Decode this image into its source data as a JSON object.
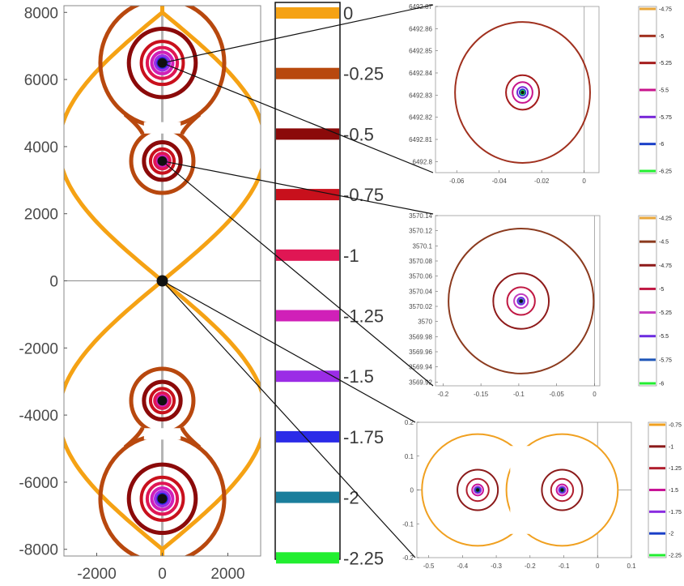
{
  "chart_data": [
    {
      "type": "contour",
      "panel": "main",
      "x": {
        "ticks": [
          -2000,
          0,
          2000
        ],
        "lim": [
          -3000,
          3000
        ]
      },
      "y": {
        "ticks": [
          -8000,
          -6000,
          -4000,
          -2000,
          0,
          2000,
          4000,
          6000,
          8000
        ],
        "lim": [
          -8200,
          8200
        ]
      },
      "grid": false,
      "critical_points": [
        {
          "x": 0,
          "y": 6492.83
        },
        {
          "x": 0,
          "y": 3570.03
        },
        {
          "x": 0,
          "y": 0
        },
        {
          "x": 0,
          "y": -3570.03
        },
        {
          "x": 0,
          "y": -6492.83
        }
      ],
      "levels": [
        0,
        -0.25,
        -0.5,
        -0.75,
        -1,
        -1.25,
        -1.5
      ]
    },
    {
      "type": "legend",
      "panel": "level-scale",
      "levels": [
        0,
        -0.25,
        -0.5,
        -0.75,
        -1,
        -1.25,
        -1.5,
        -1.75,
        -2,
        -2.25
      ],
      "labels": [
        "0",
        "-0.25",
        "-0.5",
        "-0.75",
        "-1",
        "-1.25",
        "-1.5",
        "-1.75",
        "-2",
        "-2.25"
      ],
      "colors": [
        "#F5A214",
        "#B8480E",
        "#8B0A0A",
        "#C8101C",
        "#E01654",
        "#D020B8",
        "#9B2CE6",
        "#2B2BE8",
        "#1A7E9C",
        "#22EE30"
      ]
    },
    {
      "type": "contour",
      "panel": "zoom-top",
      "x": {
        "ticks": [
          -0.06,
          -0.04,
          -0.02,
          0
        ],
        "lim": [
          -0.07,
          0.007
        ]
      },
      "y": {
        "ticks": [
          6492.8,
          6492.81,
          6492.82,
          6492.83,
          6492.84,
          6492.85,
          6492.86,
          6492.87
        ],
        "labels": [
          "6492.8",
          "6492.81",
          "6492.82",
          "6492.83",
          "6492.84",
          "6492.85",
          "6492.86",
          "6492.87"
        ],
        "lim": [
          6492.795,
          6492.87
        ]
      },
      "center": {
        "x": -0.029,
        "y": 6492.8312
      },
      "rings": [
        {
          "level": -5,
          "radius": 0.0318
        },
        {
          "level": -5.25,
          "radius": 0.0078
        },
        {
          "level": -5.5,
          "radius": 0.0047
        },
        {
          "level": -5.75,
          "radius": 0.0025
        },
        {
          "level": -6,
          "radius": 0.0014
        },
        {
          "level": -6.25,
          "radius": 0.0008
        }
      ],
      "colorbar": {
        "labels": [
          "-4.75",
          "-5",
          "-5.25",
          "-5.5",
          "-5.75",
          "-6",
          "-6.25"
        ],
        "colors": [
          "#E8A63A",
          "#A0301E",
          "#A41C1C",
          "#C8148C",
          "#7828D8",
          "#1A3FC8",
          "#22EE30"
        ]
      }
    },
    {
      "type": "contour",
      "panel": "zoom-middle",
      "x": {
        "ticks": [
          -0.2,
          -0.15,
          -0.1,
          -0.05,
          0
        ],
        "lim": [
          -0.21,
          0.007
        ]
      },
      "y": {
        "ticks": [
          3569.92,
          3569.94,
          3569.96,
          3569.98,
          3570,
          3570.02,
          3570.04,
          3570.06,
          3570.08,
          3570.1,
          3570.12,
          3570.14
        ],
        "labels": [
          "3569.92",
          "3569.94",
          "3569.96",
          "3569.98",
          "3570",
          "3570.02",
          "3570.04",
          "3570.06",
          "3570.08",
          "3570.1",
          "3570.12",
          "3570.14"
        ],
        "lim": [
          3569.915,
          3570.14
        ]
      },
      "center": {
        "x": -0.097,
        "y": 3570.027
      },
      "rings": [
        {
          "level": -4.5,
          "radius": 0.0958
        },
        {
          "level": -4.75,
          "radius": 0.0367
        },
        {
          "level": -5,
          "radius": 0.0183
        },
        {
          "level": -5.25,
          "radius": 0.0092
        },
        {
          "level": -5.5,
          "radius": 0.0046
        },
        {
          "level": -5.75,
          "radius": 0.0023
        }
      ],
      "colorbar": {
        "labels": [
          "-4.25",
          "-4.5",
          "-4.75",
          "-5",
          "-5.25",
          "-5.5",
          "-5.75",
          "-6"
        ],
        "colors": [
          "#E8A63A",
          "#8B3A1E",
          "#8E1A1A",
          "#C01843",
          "#C43CC0",
          "#6C2CE0",
          "#1E55B8",
          "#22EE30"
        ]
      }
    },
    {
      "type": "contour",
      "panel": "zoom-bottom",
      "x": {
        "ticks": [
          -0.5,
          -0.4,
          -0.3,
          -0.2,
          -0.1,
          0,
          0.1
        ],
        "lim": [
          -0.535,
          0.1
        ]
      },
      "y": {
        "ticks": [
          -0.2,
          -0.1,
          0,
          0.1,
          0.2
        ],
        "lim": [
          -0.2,
          0.2
        ]
      },
      "centers": [
        {
          "x": -0.355,
          "y": 0
        },
        {
          "x": -0.105,
          "y": 0
        }
      ],
      "outer_contour": {
        "level": -0.75,
        "radius": 0.165
      },
      "rings": [
        {
          "level": -1,
          "radius": 0.06
        },
        {
          "level": -1.25,
          "radius": 0.0328
        },
        {
          "level": -1.5,
          "radius": 0.0164
        },
        {
          "level": -1.75,
          "radius": 0.0098
        },
        {
          "level": -2,
          "radius": 0.0057
        },
        {
          "level": -2.25,
          "radius": 0.0033
        }
      ],
      "colorbar": {
        "labels": [
          "-0.75",
          "-1",
          "-1.25",
          "-1.5",
          "-1.75",
          "-2",
          "-2.25"
        ],
        "colors": [
          "#F0A020",
          "#8B1A1A",
          "#B01E2E",
          "#C81496",
          "#8A2CE0",
          "#1A3FC8",
          "#22EE30"
        ]
      }
    }
  ]
}
